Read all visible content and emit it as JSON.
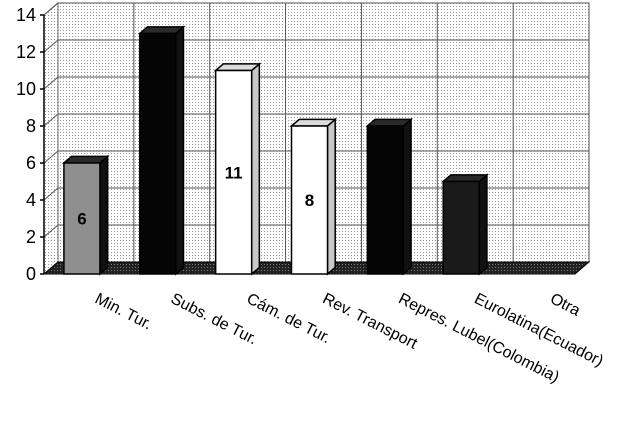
{
  "chart_data": {
    "type": "bar",
    "categories": [
      "Min. Tur.",
      "Subs. de Tur.",
      "Cám. de Tur.",
      "Rev. Transport",
      "Repres. Lubel(Colombia)",
      "Eurolatina(Ecuador)",
      "Otra"
    ],
    "values": [
      6,
      13,
      11,
      8,
      8,
      5,
      0
    ],
    "data_labels": [
      "6",
      "",
      "11",
      "8",
      "",
      "",
      ""
    ],
    "ylim": [
      0,
      14
    ],
    "yticks": [
      "0",
      "2",
      "4",
      "6",
      "8",
      "10",
      "12",
      "14"
    ],
    "grid": true,
    "style_3d": true,
    "bar_fills": [
      "#8f8f8f",
      "#050505",
      "#ffffff",
      "#ffffff",
      "#050505",
      "#1a1a1a",
      "#ffffff"
    ],
    "label_colors": [
      "#000000",
      "#ffffff",
      "#000000",
      "#000000",
      "#ffffff",
      "#ffffff",
      "#000000"
    ]
  }
}
